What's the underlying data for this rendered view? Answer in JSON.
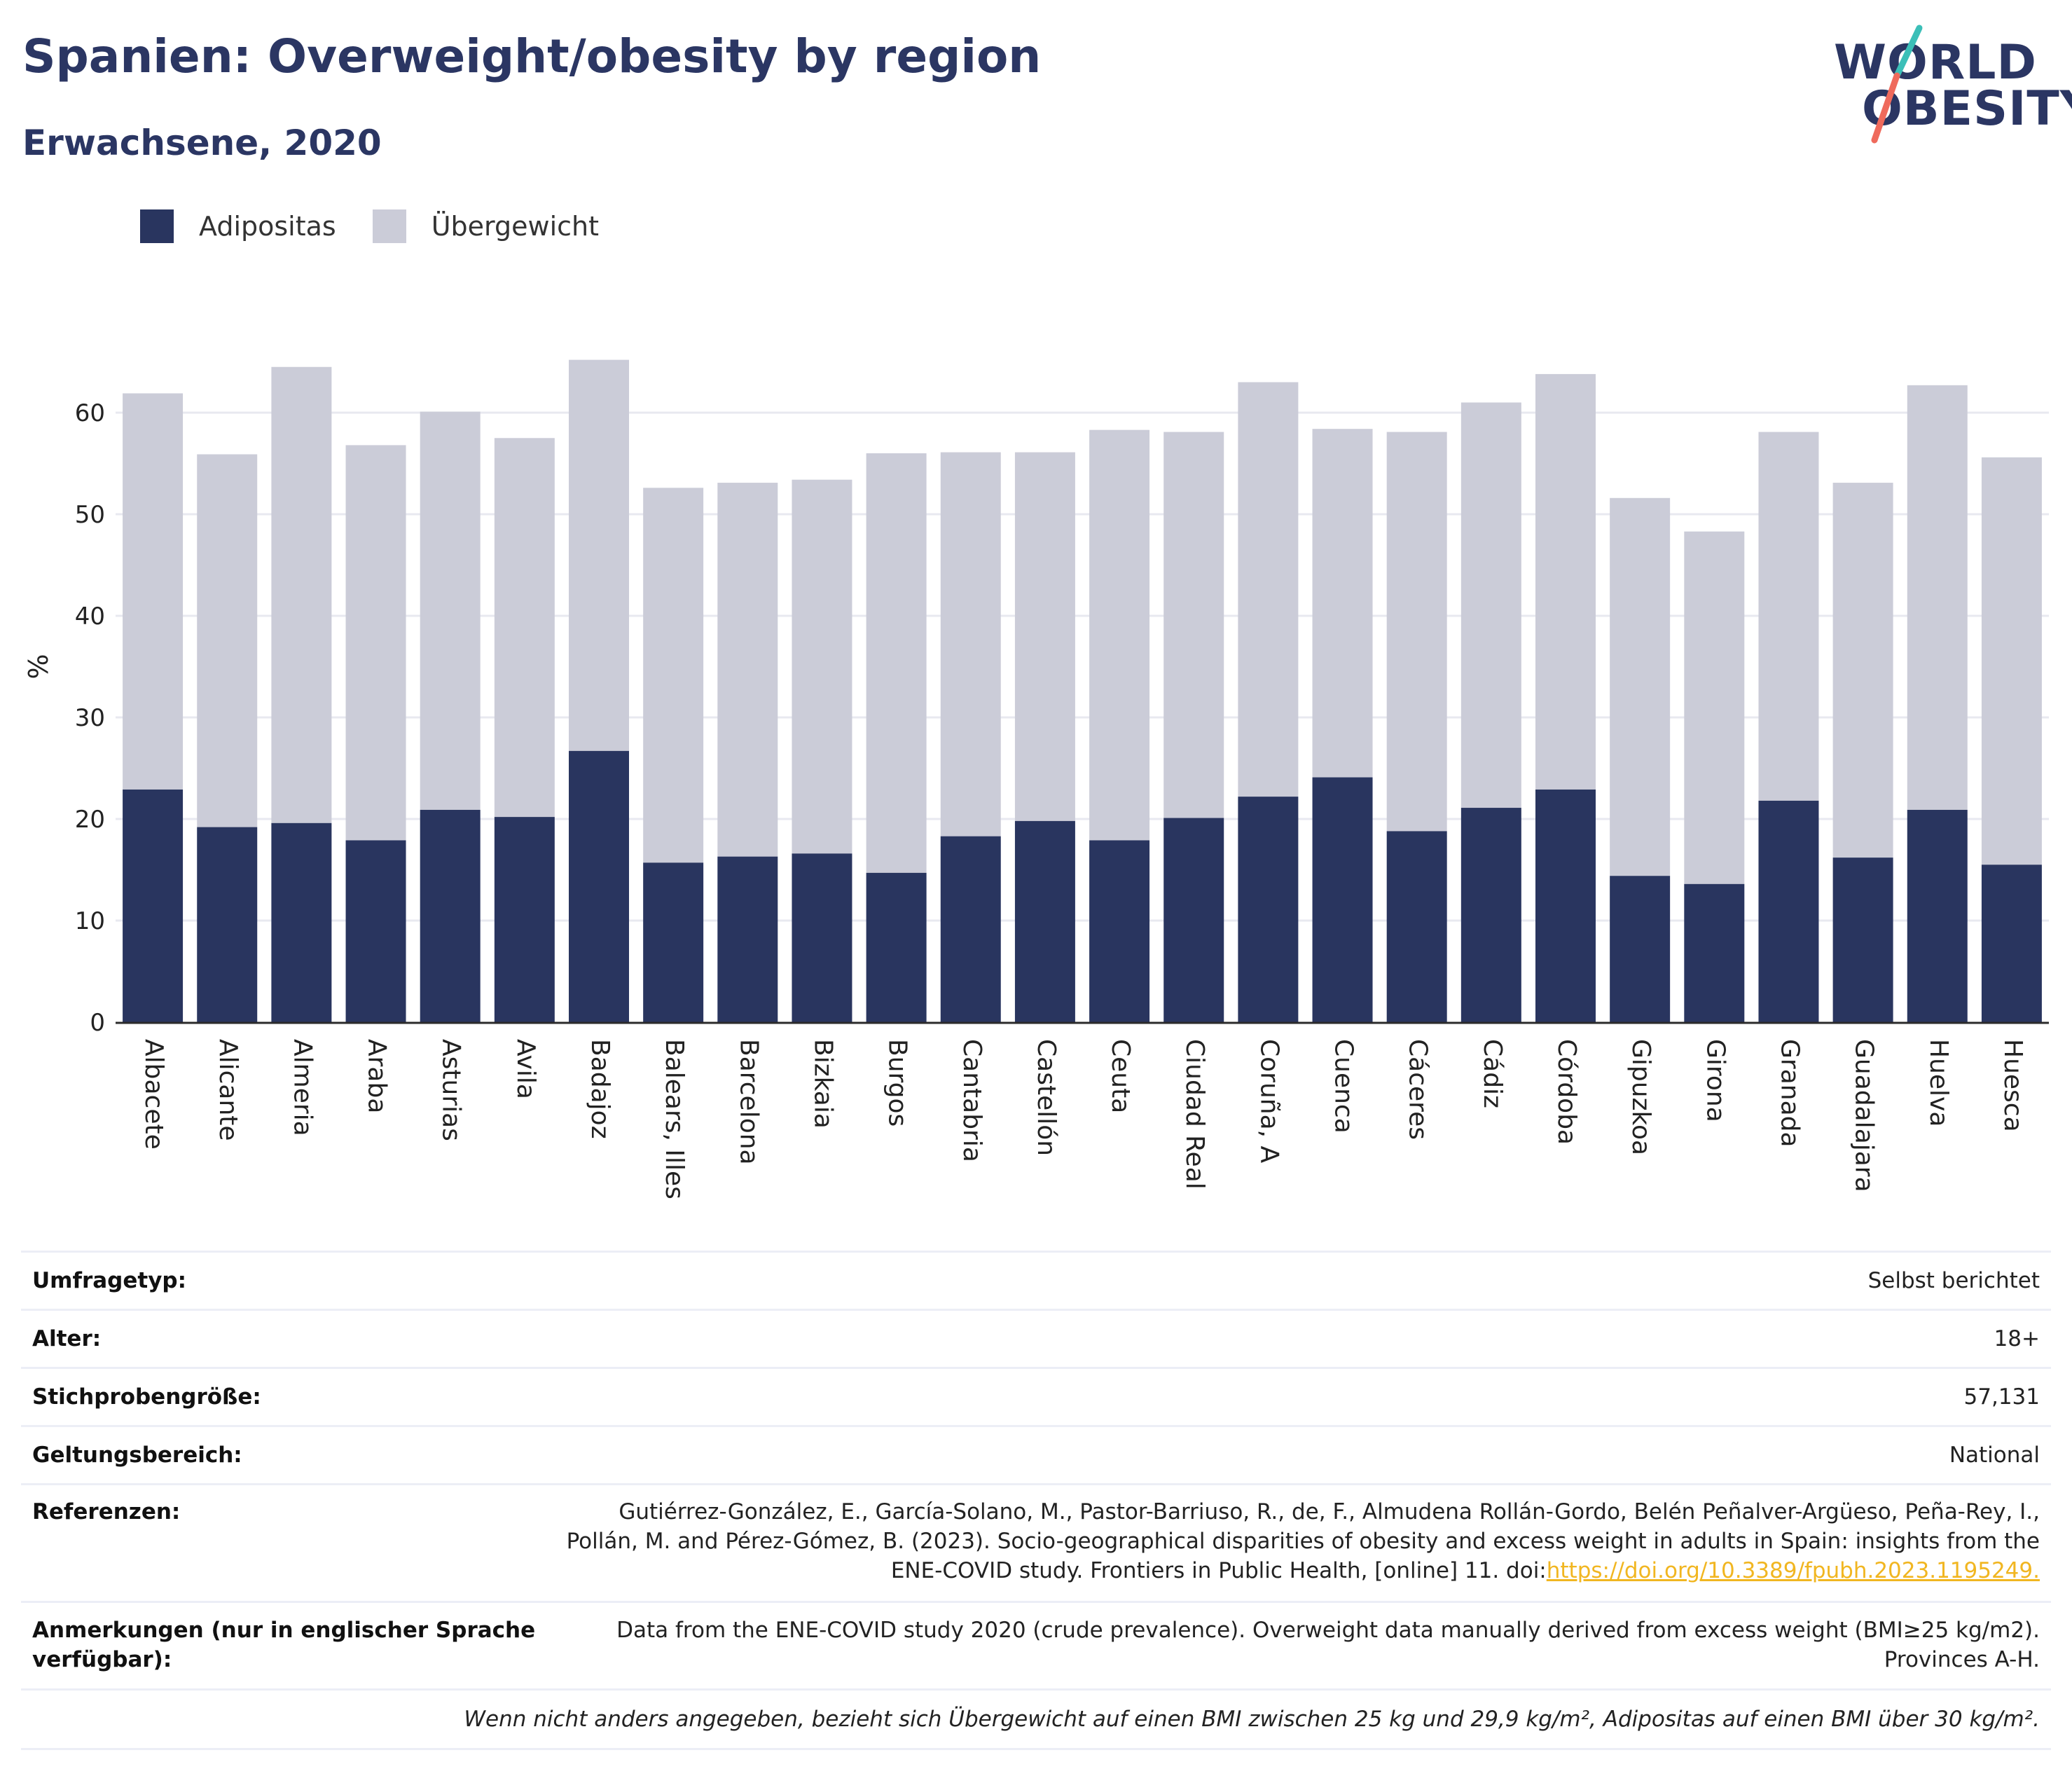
{
  "header": {
    "title": "Spanien: Overweight/obesity by region",
    "subtitle": "Erwachsene, 2020"
  },
  "logo": {
    "line1": "WORLD",
    "line2": "OBESITY"
  },
  "colors": {
    "obesity": "#29355f",
    "overweight": "#cbccd8",
    "title": "#2b3663",
    "link": "#f1b621"
  },
  "legend": [
    {
      "label": "Adipositas",
      "color": "#29355f"
    },
    {
      "label": "Übergewicht",
      "color": "#cbccd8"
    }
  ],
  "chart_data": {
    "type": "bar",
    "stacked": true,
    "ylabel": "%",
    "ylim": [
      0,
      70
    ],
    "yticks": [
      0,
      10,
      20,
      30,
      40,
      50,
      60
    ],
    "grid": true,
    "legend_position": "top-left",
    "categories": [
      "Albacete",
      "Alicante",
      "Almeria",
      "Araba",
      "Asturias",
      "Avila",
      "Badajoz",
      "Balears, Illes",
      "Barcelona",
      "Bizkaia",
      "Burgos",
      "Cantabria",
      "Castellón",
      "Ceuta",
      "Ciudad Real",
      "Coruña, A",
      "Cuenca",
      "Cáceres",
      "Cádiz",
      "Córdoba",
      "Gipuzkoa",
      "Girona",
      "Granada",
      "Guadalajara",
      "Huelva",
      "Huesca"
    ],
    "series": [
      {
        "name": "Adipositas",
        "values": [
          22.9,
          19.2,
          19.6,
          17.9,
          20.9,
          20.2,
          26.7,
          15.7,
          16.3,
          16.6,
          14.7,
          18.3,
          19.8,
          17.9,
          20.1,
          22.2,
          24.1,
          18.8,
          21.1,
          22.9,
          14.4,
          13.6,
          21.8,
          16.2,
          20.9,
          15.5
        ]
      },
      {
        "name": "Übergewicht",
        "values": [
          39.0,
          36.7,
          44.9,
          38.9,
          39.2,
          37.3,
          38.5,
          36.9,
          36.8,
          36.8,
          41.3,
          37.8,
          36.3,
          40.4,
          38.0,
          40.8,
          34.3,
          39.3,
          39.9,
          40.9,
          37.2,
          34.7,
          36.3,
          36.9,
          41.8,
          40.1
        ]
      }
    ]
  },
  "info": {
    "survey_type": {
      "label": "Umfragetyp:",
      "value": "Selbst berichtet"
    },
    "age": {
      "label": "Alter:",
      "value": "18+"
    },
    "sample": {
      "label": "Stichprobengröße:",
      "value": "57,131"
    },
    "scope": {
      "label": "Geltungsbereich:",
      "value": "National"
    },
    "references": {
      "label": "Referenzen:",
      "line1": "Gutiérrez-González, E., García-Solano, M., Pastor-Barriuso, R., de, F., Almudena Rollán-Gordo, Belén Peñalver-Argüeso, Peña-Rey, I.,",
      "line2": "Pollán, M. and Pérez-Gómez, B. (2023). Socio-geographical disparities of obesity and excess weight in adults in Spain: insights from the",
      "line3": "ENE-COVID study. Frontiers in Public Health, [online] 11. doi:",
      "link": "https://doi.org/10.3389/fpubh.2023.1195249."
    },
    "notes": {
      "label_line1": "Anmerkungen (nur in englischer Sprache",
      "label_line2": "verfügbar):",
      "line1": "Data from the ENE-COVID study 2020 (crude prevalence). Overweight data manually derived from excess weight (BMI≥25 kg/m2).",
      "line2": "Provinces A-H."
    },
    "footnote": "Wenn nicht anders angegeben, bezieht sich Übergewicht auf einen BMI zwischen 25 kg und 29,9 kg/m², Adipositas auf einen BMI über 30 kg/m²."
  }
}
